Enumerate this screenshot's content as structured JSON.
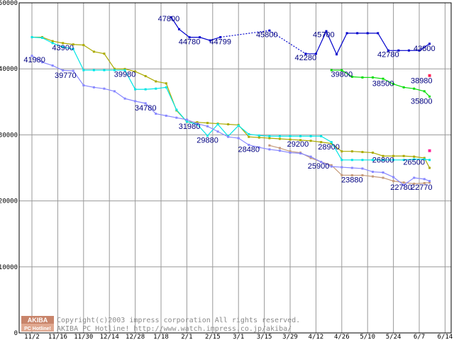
{
  "chart_data": {
    "type": "line",
    "ylim": [
      0,
      50000
    ],
    "y_ticks": [
      "0",
      "10000",
      "20000",
      "30000",
      "40000",
      "50000"
    ],
    "x_tick_labels": [
      "11/2",
      "11/16",
      "11/30",
      "12/14",
      "12/28",
      "1/18",
      "2/1",
      "2/15",
      "3/1",
      "3/15",
      "3/29",
      "4/12",
      "4/26",
      "5/10",
      "5/24",
      "6/7",
      "6/14"
    ],
    "grid": true,
    "series": [
      {
        "color": "#0000cc",
        "points": [
          [
            10.8,
            47800
          ],
          [
            11.4,
            46000
          ],
          [
            12.2,
            44780
          ],
          [
            13.0,
            44780
          ],
          [
            13.8,
            44300
          ],
          [
            14.6,
            44799
          ],
          {
            "gap": true
          },
          [
            18.4,
            45800
          ],
          {
            "gap": true
          },
          [
            21.2,
            42280
          ],
          [
            22.0,
            42280
          ],
          [
            22.8,
            45700
          ],
          [
            23.6,
            42200
          ],
          [
            24.4,
            45400
          ],
          [
            25.2,
            45400
          ],
          [
            26.0,
            45400
          ],
          [
            26.8,
            45400
          ],
          [
            27.6,
            42780
          ],
          [
            28.4,
            42780
          ],
          [
            29.2,
            42780
          ],
          [
            30.0,
            42780
          ],
          [
            30.8,
            43800
          ]
        ],
        "dotted_segments": [
          [
            14.6,
            44799,
            18.4,
            45800
          ],
          [
            18.4,
            45800,
            21.2,
            42280
          ]
        ]
      },
      {
        "color": "#00dd00",
        "points": [
          [
            23.2,
            39800
          ],
          [
            24.0,
            39800
          ],
          [
            24.8,
            38800
          ],
          [
            25.6,
            38700
          ],
          [
            26.4,
            38700
          ],
          [
            27.2,
            38500
          ],
          [
            28.0,
            37700
          ],
          [
            28.8,
            37200
          ],
          [
            29.6,
            37000
          ],
          [
            30.4,
            36600
          ],
          [
            30.8,
            35800
          ]
        ]
      },
      {
        "color": "#aaaa00",
        "points": [
          [
            0.0,
            44800
          ],
          [
            0.8,
            44800
          ],
          [
            1.6,
            44200
          ],
          [
            2.4,
            43900
          ],
          [
            3.2,
            43700
          ],
          [
            4.0,
            43600
          ],
          [
            4.8,
            42600
          ],
          [
            5.6,
            42300
          ],
          [
            6.4,
            40000
          ],
          [
            7.2,
            39980
          ],
          [
            8.0,
            39600
          ],
          [
            8.8,
            38900
          ],
          [
            9.6,
            38100
          ],
          [
            10.4,
            37800
          ],
          [
            11.2,
            33700
          ],
          [
            12.0,
            31980
          ],
          [
            12.8,
            31900
          ],
          [
            13.6,
            31800
          ],
          [
            14.4,
            31700
          ],
          [
            15.2,
            31600
          ],
          [
            16.0,
            31500
          ],
          [
            16.8,
            29700
          ],
          [
            17.6,
            29600
          ],
          [
            18.4,
            29500
          ],
          [
            19.2,
            29400
          ],
          [
            20.0,
            29300
          ],
          [
            20.8,
            29200
          ],
          [
            21.6,
            29100
          ],
          [
            22.4,
            28900
          ],
          [
            23.2,
            28700
          ],
          [
            24.0,
            27500
          ],
          [
            24.8,
            27500
          ],
          [
            25.6,
            27400
          ],
          [
            26.4,
            27300
          ],
          [
            27.2,
            26800
          ],
          [
            28.0,
            26800
          ],
          [
            28.8,
            26800
          ],
          [
            29.6,
            26700
          ],
          [
            30.4,
            26500
          ],
          [
            30.8,
            25000
          ]
        ]
      },
      {
        "color": "#00e5e5",
        "points": [
          [
            0.0,
            44800
          ],
          [
            0.8,
            44700
          ],
          [
            1.6,
            43900
          ],
          [
            2.4,
            43300
          ],
          [
            3.2,
            43000
          ],
          [
            4.0,
            39800
          ],
          [
            4.8,
            39800
          ],
          [
            5.6,
            39800
          ],
          [
            6.4,
            39800
          ],
          [
            7.2,
            39800
          ],
          [
            8.0,
            36900
          ],
          [
            8.8,
            36900
          ],
          [
            9.6,
            37000
          ],
          [
            10.4,
            37200
          ],
          [
            11.2,
            33800
          ],
          [
            12.0,
            32000
          ],
          [
            12.8,
            31600
          ],
          [
            13.6,
            29880
          ],
          [
            14.4,
            31600
          ],
          [
            15.2,
            29800
          ],
          [
            16.0,
            31400
          ],
          [
            16.8,
            30100
          ],
          [
            17.6,
            29900
          ],
          [
            18.4,
            29800
          ],
          [
            19.2,
            29800
          ],
          [
            20.0,
            29800
          ],
          [
            20.8,
            29800
          ],
          [
            21.6,
            29800
          ],
          [
            22.4,
            29800
          ],
          [
            23.2,
            28900
          ],
          [
            24.0,
            26200
          ],
          [
            24.8,
            26200
          ],
          [
            25.6,
            26200
          ],
          [
            26.4,
            26200
          ],
          [
            27.2,
            26200
          ],
          [
            28.0,
            26200
          ],
          [
            28.8,
            26200
          ],
          [
            29.6,
            26300
          ],
          [
            30.4,
            26300
          ],
          [
            30.8,
            26200
          ]
        ]
      },
      {
        "color": "#c49a7a",
        "points": [
          [
            18.4,
            28400
          ],
          [
            19.2,
            28000
          ],
          [
            20.0,
            27500
          ],
          [
            20.8,
            27300
          ],
          [
            21.6,
            26500
          ],
          [
            22.4,
            25900
          ],
          [
            23.2,
            25400
          ],
          [
            24.0,
            23900
          ],
          [
            24.8,
            23880
          ],
          [
            25.6,
            23880
          ],
          [
            26.4,
            23700
          ],
          [
            27.2,
            23500
          ],
          [
            28.0,
            23000
          ],
          [
            28.8,
            22780
          ],
          [
            29.6,
            22600
          ],
          [
            30.4,
            22700
          ],
          [
            30.8,
            22770
          ]
        ]
      },
      {
        "color": "#8888ff",
        "points": [
          [
            0.0,
            41980
          ],
          [
            0.8,
            41000
          ],
          [
            1.6,
            40500
          ],
          [
            2.4,
            39770
          ],
          [
            3.2,
            39700
          ],
          [
            4.0,
            37500
          ],
          [
            4.8,
            37200
          ],
          [
            5.6,
            37000
          ],
          [
            6.4,
            36600
          ],
          [
            7.2,
            35500
          ],
          [
            8.0,
            35100
          ],
          [
            8.8,
            34780
          ],
          [
            9.6,
            33200
          ],
          [
            10.4,
            32900
          ],
          [
            11.2,
            32600
          ],
          [
            12.0,
            32300
          ],
          [
            12.8,
            31700
          ],
          [
            13.6,
            31300
          ],
          [
            14.4,
            30500
          ],
          [
            15.2,
            29700
          ],
          [
            16.0,
            29500
          ],
          [
            16.8,
            28480
          ],
          [
            17.6,
            28100
          ],
          [
            18.4,
            27800
          ],
          [
            19.2,
            27600
          ],
          [
            20.0,
            27300
          ],
          [
            20.8,
            27200
          ],
          [
            21.6,
            26700
          ],
          [
            22.4,
            25900
          ],
          [
            23.2,
            25200
          ],
          [
            24.0,
            25100
          ],
          [
            24.8,
            25000
          ],
          [
            25.6,
            24900
          ],
          [
            26.4,
            24400
          ],
          [
            27.2,
            24300
          ],
          [
            28.0,
            23600
          ],
          [
            28.8,
            22400
          ],
          [
            29.6,
            23500
          ],
          [
            30.4,
            23300
          ],
          [
            30.8,
            23000
          ]
        ]
      }
    ],
    "markers": [
      {
        "x": 30.8,
        "y": 38980,
        "color": "#ff2255"
      },
      {
        "x": 30.8,
        "y": 27600,
        "color": "#ff2299"
      }
    ],
    "data_labels": [
      {
        "text": "47800",
        "x": 10.6,
        "y": 47200
      },
      {
        "text": "44780",
        "x": 12.2,
        "y": 43700
      },
      {
        "text": "44799",
        "x": 14.6,
        "y": 43700
      },
      {
        "text": "45800",
        "x": 18.2,
        "y": 44800
      },
      {
        "text": "45700",
        "x": 22.6,
        "y": 44800
      },
      {
        "text": "42280",
        "x": 21.2,
        "y": 41300
      },
      {
        "text": "42780",
        "x": 27.6,
        "y": 41800
      },
      {
        "text": "43800",
        "x": 30.4,
        "y": 42700
      },
      {
        "text": "41980",
        "x": 0.2,
        "y": 41000
      },
      {
        "text": "43900",
        "x": 2.4,
        "y": 42800
      },
      {
        "text": "39770",
        "x": 2.6,
        "y": 38600
      },
      {
        "text": "39980",
        "x": 7.2,
        "y": 38800
      },
      {
        "text": "34780",
        "x": 8.8,
        "y": 33700
      },
      {
        "text": "31980",
        "x": 12.2,
        "y": 30900
      },
      {
        "text": "29880",
        "x": 13.6,
        "y": 28800
      },
      {
        "text": "28480",
        "x": 16.8,
        "y": 27400
      },
      {
        "text": "29200",
        "x": 20.6,
        "y": 28200
      },
      {
        "text": "28900",
        "x": 23.0,
        "y": 27800
      },
      {
        "text": "25900",
        "x": 22.2,
        "y": 24900
      },
      {
        "text": "23880",
        "x": 24.8,
        "y": 22800
      },
      {
        "text": "26800",
        "x": 27.2,
        "y": 25800
      },
      {
        "text": "26500",
        "x": 29.6,
        "y": 25500
      },
      {
        "text": "22780",
        "x": 28.6,
        "y": 21700
      },
      {
        "text": "22770",
        "x": 30.8,
        "y": 21700
      },
      {
        "text": "39800",
        "x": 24.0,
        "y": 38800
      },
      {
        "text": "38500",
        "x": 27.2,
        "y": 37400
      },
      {
        "text": "38980",
        "x": 30.8,
        "y": 37800
      },
      {
        "text": "35800",
        "x": 30.8,
        "y": 34700
      }
    ]
  },
  "watermark": {
    "logo_top": "AKIBA",
    "logo_bottom": "PC Hotline!",
    "line1": "Copyright(c)2003 impress corporation All rights reserved.",
    "line2": "AKIBA PC Hotline!  http://www.watch.impress.co.jp/akiba/"
  }
}
